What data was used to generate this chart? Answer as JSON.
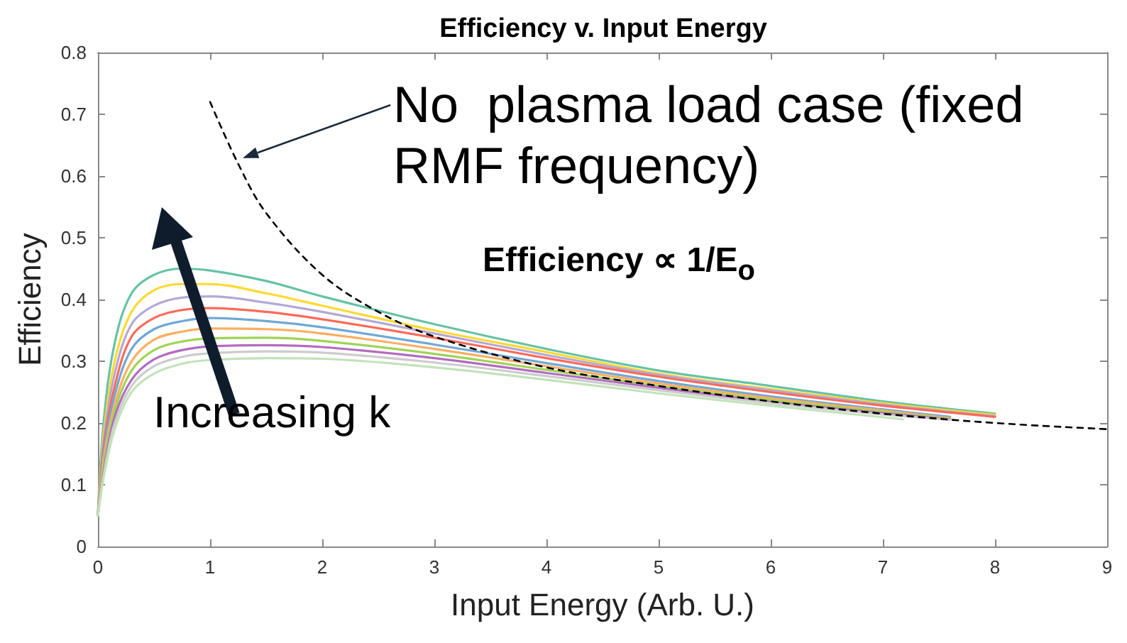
{
  "chart_data": {
    "type": "line",
    "title": "Efficiency v. Input Energy",
    "xlabel": "Input Energy (Arb. U.)",
    "ylabel": "Efficiency",
    "xlim": [
      0,
      9
    ],
    "xticks": [
      0,
      1,
      2,
      3,
      4,
      5,
      6,
      7,
      8,
      9
    ],
    "ylim": [
      0,
      0.8
    ],
    "yticks": [
      0,
      0.1,
      0.2,
      0.3,
      0.4,
      0.5,
      0.6,
      0.7,
      0.8
    ],
    "grid": false,
    "marker": "none",
    "annotations": [
      {
        "text": "No  plasma load case (fixed RMF frequency)",
        "x": 1.29,
        "y": 0.63
      },
      "Efficiency ∝ 1/E$_{o}$",
      "Increasing k"
    ],
    "series": [
      {
        "color": "#000000",
        "line_style": "dashed",
        "x": [
          1,
          1.25,
          1.5,
          2,
          2.5,
          3,
          4,
          5,
          6,
          7,
          8,
          9
        ],
        "values": [
          0.72,
          0.62,
          0.54,
          0.44,
          0.38,
          0.34,
          0.29,
          0.26,
          0.235,
          0.215,
          0.2,
          0.19
        ]
      },
      {
        "color": "#66c2a5",
        "x": [
          0,
          0.05,
          0.15,
          0.3,
          0.5,
          0.75,
          1,
          1.5,
          2,
          3,
          4,
          5,
          6,
          7,
          8
        ],
        "values": [
          0.05,
          0.2,
          0.33,
          0.41,
          0.44,
          0.45,
          0.447,
          0.43,
          0.405,
          0.36,
          0.32,
          0.285,
          0.26,
          0.235,
          0.215
        ]
      },
      {
        "color": "#ffd92f",
        "x": [
          0,
          0.05,
          0.15,
          0.3,
          0.5,
          0.75,
          1,
          1.5,
          2,
          3,
          4,
          5,
          6,
          7,
          8
        ],
        "values": [
          0.05,
          0.18,
          0.3,
          0.38,
          0.415,
          0.425,
          0.425,
          0.41,
          0.39,
          0.35,
          0.315,
          0.28,
          0.255,
          0.232,
          0.213
        ]
      },
      {
        "color": "#b3a8d6",
        "x": [
          0,
          0.05,
          0.15,
          0.3,
          0.5,
          0.75,
          1,
          1.5,
          2,
          3,
          4,
          5,
          6,
          7,
          8
        ],
        "values": [
          0.05,
          0.17,
          0.28,
          0.36,
          0.39,
          0.403,
          0.405,
          0.395,
          0.38,
          0.345,
          0.31,
          0.278,
          0.253,
          0.23,
          0.211
        ]
      },
      {
        "color": "#fb6a5a",
        "x": [
          0,
          0.05,
          0.15,
          0.3,
          0.5,
          0.75,
          1,
          1.5,
          2,
          3,
          4,
          5,
          6,
          7,
          8
        ],
        "values": [
          0.05,
          0.16,
          0.26,
          0.34,
          0.37,
          0.383,
          0.386,
          0.38,
          0.368,
          0.338,
          0.305,
          0.275,
          0.25,
          0.228,
          0.21
        ]
      },
      {
        "color": "#6fa8d6",
        "x": [
          0,
          0.05,
          0.15,
          0.3,
          0.5,
          0.75,
          1,
          1.5,
          2,
          3,
          4,
          5,
          6,
          7,
          7.6
        ],
        "values": [
          0.05,
          0.15,
          0.245,
          0.32,
          0.352,
          0.365,
          0.37,
          0.365,
          0.355,
          0.327,
          0.297,
          0.268,
          0.243,
          0.222,
          0.21
        ]
      },
      {
        "color": "#fdae61",
        "x": [
          0,
          0.05,
          0.15,
          0.3,
          0.5,
          0.75,
          1,
          1.5,
          2,
          3,
          4,
          5,
          6,
          7,
          7.6
        ],
        "values": [
          0.05,
          0.14,
          0.23,
          0.3,
          0.335,
          0.348,
          0.353,
          0.352,
          0.345,
          0.32,
          0.292,
          0.264,
          0.24,
          0.22,
          0.208
        ]
      },
      {
        "color": "#9fd356",
        "x": [
          0,
          0.05,
          0.15,
          0.3,
          0.5,
          0.75,
          1,
          1.5,
          2,
          3,
          4,
          5,
          6,
          7,
          7.6
        ],
        "values": [
          0.05,
          0.13,
          0.22,
          0.285,
          0.318,
          0.332,
          0.337,
          0.338,
          0.333,
          0.312,
          0.286,
          0.26,
          0.237,
          0.218,
          0.207
        ]
      },
      {
        "color": "#b36bc0",
        "x": [
          0,
          0.05,
          0.15,
          0.3,
          0.5,
          0.75,
          1,
          1.5,
          2,
          3,
          4,
          5,
          6,
          7,
          7.6
        ],
        "values": [
          0.05,
          0.12,
          0.21,
          0.27,
          0.303,
          0.318,
          0.324,
          0.326,
          0.323,
          0.305,
          0.281,
          0.257,
          0.234,
          0.216,
          0.206
        ]
      },
      {
        "color": "#cccccc",
        "x": [
          0,
          0.05,
          0.15,
          0.3,
          0.5,
          0.75,
          1,
          1.5,
          2,
          3,
          4,
          5,
          6,
          7,
          7.6
        ],
        "values": [
          0.05,
          0.115,
          0.2,
          0.26,
          0.292,
          0.307,
          0.313,
          0.316,
          0.314,
          0.298,
          0.276,
          0.253,
          0.232,
          0.214,
          0.205
        ]
      },
      {
        "color": "#c2e3b8",
        "x": [
          0,
          0.05,
          0.15,
          0.3,
          0.5,
          0.75,
          1,
          1.5,
          2,
          3,
          4,
          5,
          6,
          7.18
        ],
        "values": [
          0.05,
          0.11,
          0.19,
          0.25,
          0.28,
          0.296,
          0.302,
          0.305,
          0.304,
          0.29,
          0.27,
          0.248,
          0.228,
          0.206
        ]
      }
    ]
  }
}
